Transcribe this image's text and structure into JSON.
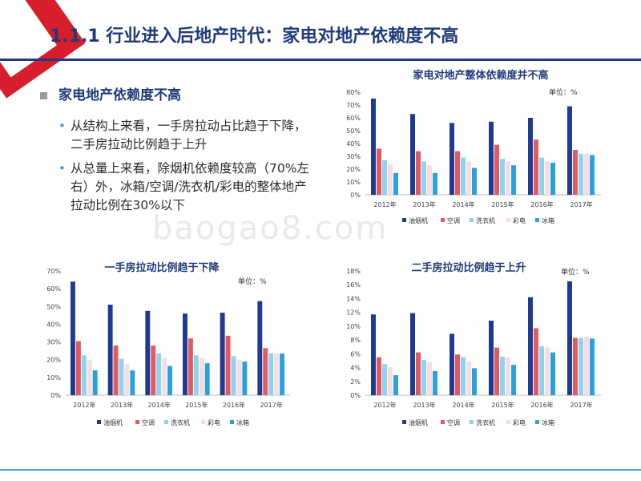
{
  "title": "1.1.1 行业进入后地产时代：家电对地产依赖度不高",
  "bullet": {
    "heading": "家电地产依赖度不高",
    "points": [
      "从结构上来看，一手房拉动占比趋于下降，二手房拉动比例趋于上升",
      "从总量上来看，除烟机依赖度较高（70%左右）外，冰箱/空调/洗衣机/彩电的整体地产拉动比例在30%以下"
    ]
  },
  "watermark": "baogao8.com",
  "colors": {
    "title": "#1f3b7a",
    "accent_red": "#d81e2c",
    "series": [
      "#1f3a93",
      "#e05a5f",
      "#8fd3f0",
      "#f7dde3",
      "#2aa1de"
    ]
  },
  "chart_data": [
    {
      "type": "bar",
      "title": "家电对地产整体依赖度并不高",
      "unit": "单位：%",
      "categories": [
        "2012年",
        "2013年",
        "2014年",
        "2015年",
        "2016年",
        "2017年"
      ],
      "ylim": [
        0,
        80
      ],
      "yticks": [
        "0%",
        "10%",
        "20%",
        "30%",
        "40%",
        "50%",
        "60%",
        "70%",
        "80%"
      ],
      "legend": "bottom",
      "series": [
        {
          "name": "油烟机",
          "values": [
            75,
            63,
            56,
            57,
            60,
            69
          ]
        },
        {
          "name": "空调",
          "values": [
            36,
            34,
            34,
            39,
            43,
            35
          ]
        },
        {
          "name": "洗衣机",
          "values": [
            27,
            26,
            29,
            28,
            29,
            32
          ]
        },
        {
          "name": "彩电",
          "values": [
            24,
            23,
            26,
            26,
            26,
            32
          ]
        },
        {
          "name": "冰箱",
          "values": [
            17,
            17,
            21,
            23,
            25,
            31
          ]
        }
      ]
    },
    {
      "type": "bar",
      "title": "一手房拉动比例趋于下降",
      "unit": "单位：%",
      "categories": [
        "2012年",
        "2013年",
        "2014年",
        "2015年",
        "2016年",
        "2017年"
      ],
      "ylim": [
        0,
        70
      ],
      "yticks": [
        "0%",
        "10%",
        "20%",
        "30%",
        "40%",
        "50%",
        "60%",
        "70%"
      ],
      "legend": "bottom",
      "series": [
        {
          "name": "油烟机",
          "values": [
            64,
            51,
            47.5,
            46,
            46.5,
            53
          ]
        },
        {
          "name": "空调",
          "values": [
            30.5,
            28,
            28,
            32,
            33.5,
            26.5
          ]
        },
        {
          "name": "洗衣机",
          "values": [
            22.5,
            20.5,
            23.5,
            22.5,
            22,
            23.5
          ]
        },
        {
          "name": "彩电",
          "values": [
            20,
            17.5,
            21,
            21,
            20,
            23.5
          ]
        },
        {
          "name": "冰箱",
          "values": [
            14,
            14,
            16.5,
            18,
            19,
            23.5
          ]
        }
      ]
    },
    {
      "type": "bar",
      "title": "二手房拉动比例趋于上升",
      "unit": "单位：%",
      "categories": [
        "2012年",
        "2013年",
        "2014年",
        "2015年",
        "2016年",
        "2017年"
      ],
      "ylim": [
        0,
        18
      ],
      "yticks": [
        "0%",
        "2%",
        "4%",
        "6%",
        "8%",
        "10%",
        "12%",
        "14%",
        "16%",
        "18%"
      ],
      "legend": "bottom",
      "series": [
        {
          "name": "油烟机",
          "values": [
            11.7,
            11.9,
            8.9,
            10.8,
            14.2,
            16.5
          ]
        },
        {
          "name": "空调",
          "values": [
            5.5,
            6.2,
            5.9,
            6.9,
            9.7,
            8.3
          ]
        },
        {
          "name": "洗衣机",
          "values": [
            4.5,
            5.1,
            5.5,
            5.6,
            7.1,
            8.3
          ]
        },
        {
          "name": "彩电",
          "values": [
            4.1,
            4.8,
            4.9,
            5.5,
            6.9,
            8.5
          ]
        },
        {
          "name": "冰箱",
          "values": [
            2.9,
            3.5,
            3.9,
            4.4,
            6.2,
            8.2
          ]
        }
      ]
    }
  ]
}
